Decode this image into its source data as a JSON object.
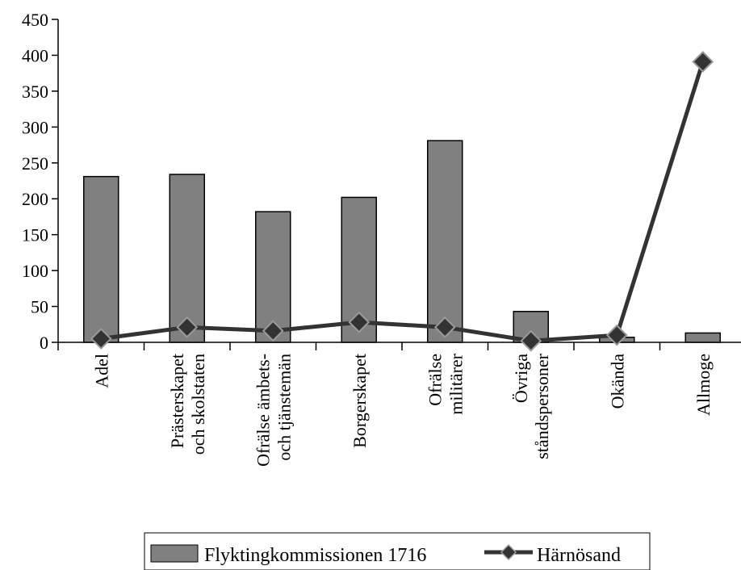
{
  "chart_data": {
    "type": "bar",
    "title": "",
    "xlabel": "",
    "ylabel": "",
    "ylim": [
      0,
      450
    ],
    "yticks": [
      0,
      50,
      100,
      150,
      200,
      250,
      300,
      350,
      400,
      450
    ],
    "categories": [
      [
        "Adel"
      ],
      [
        "Prästerskapet",
        "och skolstaten"
      ],
      [
        "Ofrälse ämbets-",
        "och tjänstemän"
      ],
      [
        "Borgerskapet"
      ],
      [
        "Ofrälse",
        "militärer"
      ],
      [
        "Övriga",
        "ståndspersoner"
      ],
      [
        "Okända"
      ],
      [
        "Allmoge"
      ]
    ],
    "series": [
      {
        "name": "Flyktingkommissionen 1716",
        "type": "bar",
        "color": "#808080",
        "values": [
          231,
          234,
          182,
          202,
          281,
          43,
          7,
          13
        ]
      },
      {
        "name": "Härnösand",
        "type": "line",
        "color": "#333333",
        "marker": "diamond",
        "values": [
          5,
          21,
          16,
          28,
          21,
          2,
          10,
          391
        ]
      }
    ],
    "grid": false,
    "legend": "bottom"
  }
}
